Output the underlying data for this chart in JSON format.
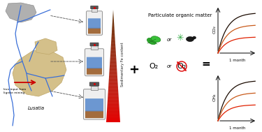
{
  "background_color": "#ffffff",
  "fig_width": 3.75,
  "fig_height": 1.89,
  "dpi": 100,
  "co2_curves": {
    "colors": [
      "#1a0a00",
      "#c85a1a",
      "#e02000"
    ],
    "label": "CO₂",
    "x_label": "1 month"
  },
  "ch4_curves": {
    "colors": [
      "#1a0a00",
      "#c85a1a",
      "#e02000"
    ],
    "label": "CH₄",
    "x_label": "1 month"
  },
  "map_region": {
    "label_lusatia": "Lusatia",
    "label_iron": "Iron input from\nlignite mining"
  },
  "sedFe_label": "Sedimentary Fe content",
  "text_plus": "+",
  "text_equals": "=",
  "pom_label": "Particulate organic matter",
  "o2_label": "O₂",
  "curve_amplitudes": [
    1.0,
    0.7,
    0.4
  ]
}
